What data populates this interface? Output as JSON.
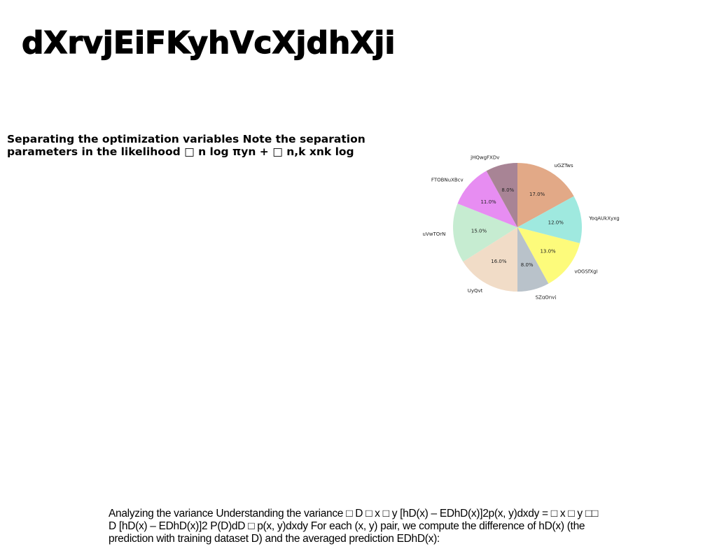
{
  "title": "dXrvjEiFKyhVcXjdhXji",
  "separation_paragraph": "Separating the optimization variables Note the separation parameters in the likelihood □ n log πyn + □ n,k xnk log",
  "variance_paragraph": "Analyzing the variance Understanding the variance □ D □ x □ y [hD(x) – EDhD(x)]2p(x, y)dxdy = □ x □ y □□ D [hD(x) – EDhD(x)]2 P(D)dD □ p(x, y)dxdy For each (x, y) pair, we compute the difference of hD(x) (the prediction with training dataset D) and the averaged prediction EDhD(x):",
  "chart_data": {
    "type": "pie",
    "start_angle": "top, clockwise",
    "slices": [
      {
        "label": "uGZTws",
        "value": 17.0,
        "pct_label": "17.0%",
        "color": "#e2a987"
      },
      {
        "label": "YoqAUkXyxg",
        "value": 12.0,
        "pct_label": "12.0%",
        "color": "#9fe9df"
      },
      {
        "label": "vOGSfXgI",
        "value": 13.0,
        "pct_label": "13.0%",
        "color": "#fdfb7b"
      },
      {
        "label": "SZqOnvj",
        "value": 8.0,
        "pct_label": "8.0%",
        "color": "#b9c2ca"
      },
      {
        "label": "UyQvt",
        "value": 16.0,
        "pct_label": "16.0%",
        "color": "#f1dcc7"
      },
      {
        "label": "uVwTOrN",
        "value": 15.0,
        "pct_label": "15.0%",
        "color": "#c6ecd1"
      },
      {
        "label": "FTOBNuXBcv",
        "value": 11.0,
        "pct_label": "11.0%",
        "color": "#e78df2"
      },
      {
        "label": "jHQwgFXDv",
        "value": 8.0,
        "pct_label": "8.0%",
        "color": "#a88495"
      }
    ]
  }
}
